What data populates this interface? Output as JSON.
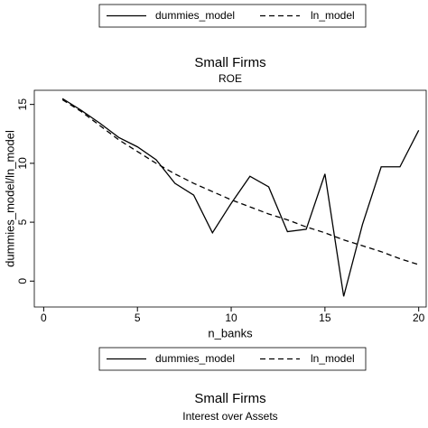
{
  "chart_data": [
    {
      "type": "line",
      "title": "Small Firms",
      "subtitle": "ROE",
      "x_label": "n_banks",
      "y_label": "dummies_model/ln_model",
      "x": [
        1,
        2,
        3,
        4,
        5,
        6,
        7,
        8,
        9,
        10,
        11,
        12,
        13,
        14,
        15,
        16,
        17,
        18,
        19,
        20
      ],
      "series": [
        {
          "name": "dummies_model",
          "color": "#000000",
          "dash": false,
          "values": [
            15.5,
            14.5,
            13.4,
            12.2,
            11.4,
            10.3,
            8.3,
            7.3,
            4.1,
            6.6,
            8.9,
            8.0,
            4.2,
            4.4,
            9.1,
            -1.3,
            4.8,
            9.7,
            9.7,
            12.8
          ]
        },
        {
          "name": "ln_model",
          "color": "#000000",
          "dash": true,
          "values": [
            15.4,
            14.4,
            13.2,
            12.0,
            11.0,
            10.0,
            9.1,
            8.3,
            7.6,
            6.9,
            6.3,
            5.7,
            5.2,
            4.6,
            4.1,
            3.5,
            3.0,
            2.5,
            1.9,
            1.4
          ]
        }
      ],
      "xlim": [
        -0.5,
        20.4
      ],
      "xticks": [
        0,
        5,
        10,
        15,
        20
      ],
      "ylim": [
        -2.2,
        16.2
      ],
      "yticks": [
        0,
        5,
        10,
        15
      ],
      "legend": "top"
    },
    {
      "type": "line",
      "title": "Small Firms",
      "subtitle": "Interest over Assets",
      "legend_labels": [
        "dummies_model",
        "ln_model"
      ],
      "legend": "top"
    }
  ]
}
